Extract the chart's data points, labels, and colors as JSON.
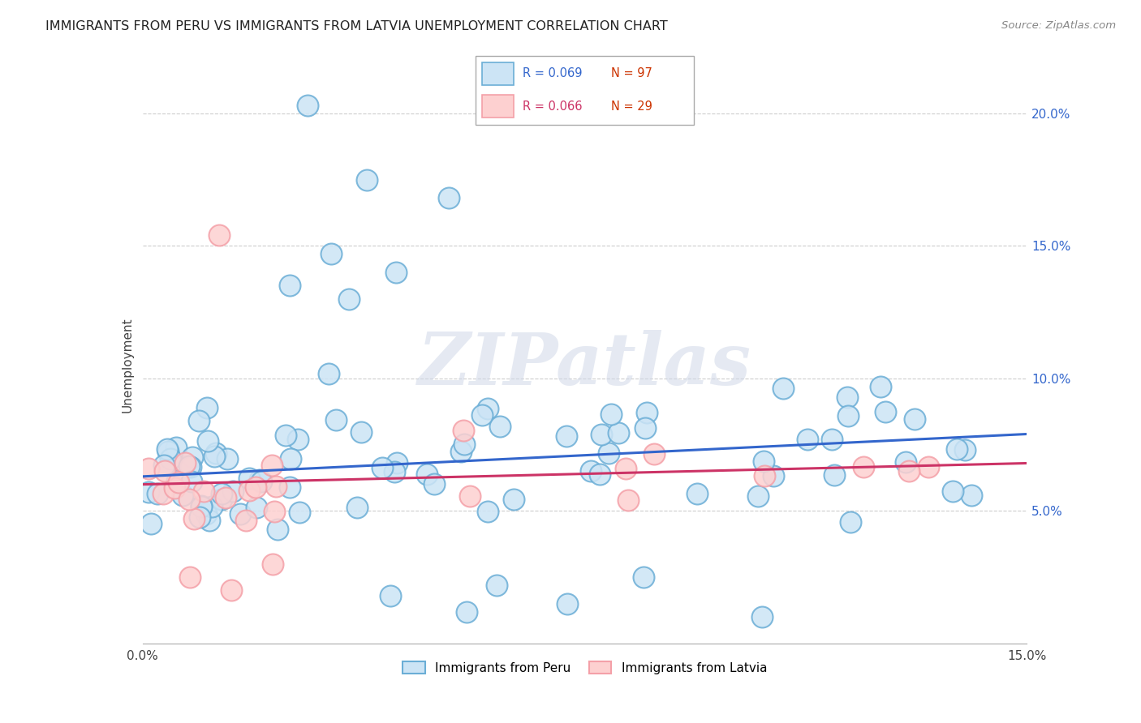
{
  "title": "IMMIGRANTS FROM PERU VS IMMIGRANTS FROM LATVIA UNEMPLOYMENT CORRELATION CHART",
  "source": "Source: ZipAtlas.com",
  "ylabel": "Unemployment",
  "xlim": [
    0.0,
    0.15
  ],
  "ylim": [
    0.0,
    0.21
  ],
  "xtick_positions": [
    0.0,
    0.05,
    0.1,
    0.15
  ],
  "xtick_labels": [
    "0.0%",
    "",
    "",
    "15.0%"
  ],
  "ytick_positions": [
    0.05,
    0.1,
    0.15,
    0.2
  ],
  "ytick_labels": [
    "5.0%",
    "10.0%",
    "15.0%",
    "20.0%"
  ],
  "peru_R": 0.069,
  "peru_N": 97,
  "latvia_R": 0.066,
  "latvia_N": 29,
  "peru_fill_color": "#cce4f5",
  "peru_edge_color": "#6baed6",
  "latvia_fill_color": "#fdd0d0",
  "latvia_edge_color": "#f4a0a8",
  "peru_line_color": "#3366cc",
  "latvia_line_color": "#cc3366",
  "watermark": "ZIPatlas",
  "grid_color": "#cccccc",
  "peru_line_y0": 0.063,
  "peru_line_y1": 0.079,
  "latvia_line_y0": 0.06,
  "latvia_line_y1": 0.068,
  "legend_label_peru": "Immigrants from Peru",
  "legend_label_latvia": "Immigrants from Latvia",
  "right_tick_color": "#3366cc"
}
